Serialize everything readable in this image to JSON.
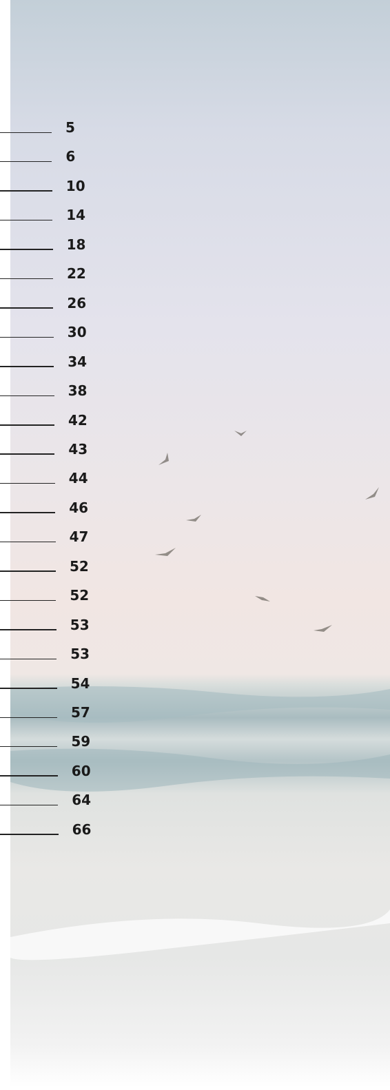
{
  "toc": {
    "page_numbers": [
      5,
      6,
      10,
      14,
      18,
      22,
      26,
      30,
      34,
      38,
      42,
      43,
      44,
      46,
      47,
      52,
      52,
      53,
      53,
      54,
      57,
      59,
      60,
      64,
      66
    ]
  }
}
